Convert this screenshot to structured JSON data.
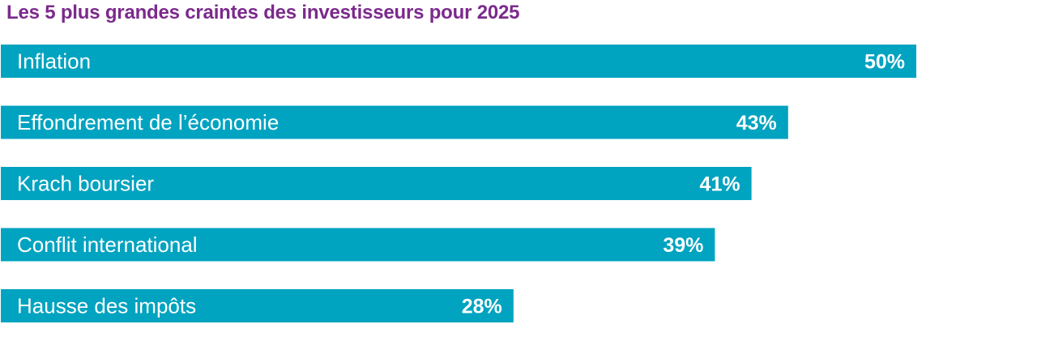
{
  "chart_data": {
    "type": "bar",
    "orientation": "horizontal",
    "title": "Les 5 plus grandes craintes des investisseurs pour 2025",
    "categories": [
      "Inflation",
      "Effondrement de l’économie",
      "Krach boursier",
      "Conflit international",
      "Hausse des impôts"
    ],
    "values": [
      50,
      43,
      41,
      39,
      28
    ],
    "value_labels": [
      "50%",
      "43%",
      "41%",
      "39%",
      "28%"
    ],
    "unit": "%",
    "xlim": [
      0,
      56.6
    ],
    "grid": false,
    "legend": "none"
  },
  "colors": {
    "title": "#7b2a8c",
    "bar": "#00a3c0",
    "text_on_bar": "#ffffff"
  }
}
